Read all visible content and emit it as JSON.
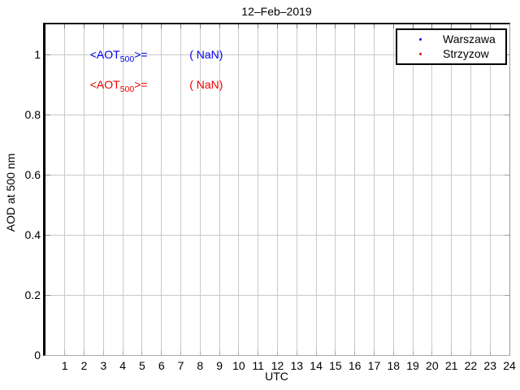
{
  "figure": {
    "background": "#ffffff"
  },
  "chart_data": {
    "type": "scatter",
    "title": "12–Feb–2019",
    "xlabel": "UTC",
    "ylabel": "AOD at 500 nm",
    "xlim": [
      0,
      24
    ],
    "ylim": [
      0,
      1.1
    ],
    "x_ticks": [
      1,
      2,
      3,
      4,
      5,
      6,
      7,
      8,
      9,
      10,
      11,
      12,
      13,
      14,
      15,
      16,
      17,
      18,
      19,
      20,
      21,
      22,
      23,
      24
    ],
    "y_ticks": [
      {
        "value": 0,
        "label": "0"
      },
      {
        "value": 0.2,
        "label": "0.2"
      },
      {
        "value": 0.4,
        "label": "0.4"
      },
      {
        "value": 0.6,
        "label": "0.6"
      },
      {
        "value": 0.8,
        "label": "0.8"
      },
      {
        "value": 1,
        "label": "1"
      }
    ],
    "grid": true,
    "grid_color": "#c9c9c9",
    "axis_color": "#000000",
    "legend": {
      "position": "top-right",
      "entries": [
        {
          "label": "Warszawa",
          "color": "#0000ee",
          "marker": "dot"
        },
        {
          "label": "Strzyzow",
          "color": "#ee0000",
          "marker": "dot"
        }
      ]
    },
    "series": [
      {
        "name": "Warszawa",
        "color": "#0000ee",
        "marker": "dot",
        "x": [],
        "y": []
      },
      {
        "name": "Strzyzow",
        "color": "#ee0000",
        "marker": "dot",
        "x": [],
        "y": []
      }
    ],
    "annotations": [
      {
        "pre": "<AOT",
        "sub": "500",
        "post": ">=",
        "value": "( NaN)",
        "color": "#0000ee",
        "x": 2.3,
        "y": 1.0,
        "value_x": 7.45
      },
      {
        "pre": "<AOT",
        "sub": "500",
        "post": ">=",
        "value": "( NaN)",
        "color": "#ee0000",
        "x": 2.3,
        "y": 0.9,
        "value_x": 7.45
      }
    ]
  }
}
